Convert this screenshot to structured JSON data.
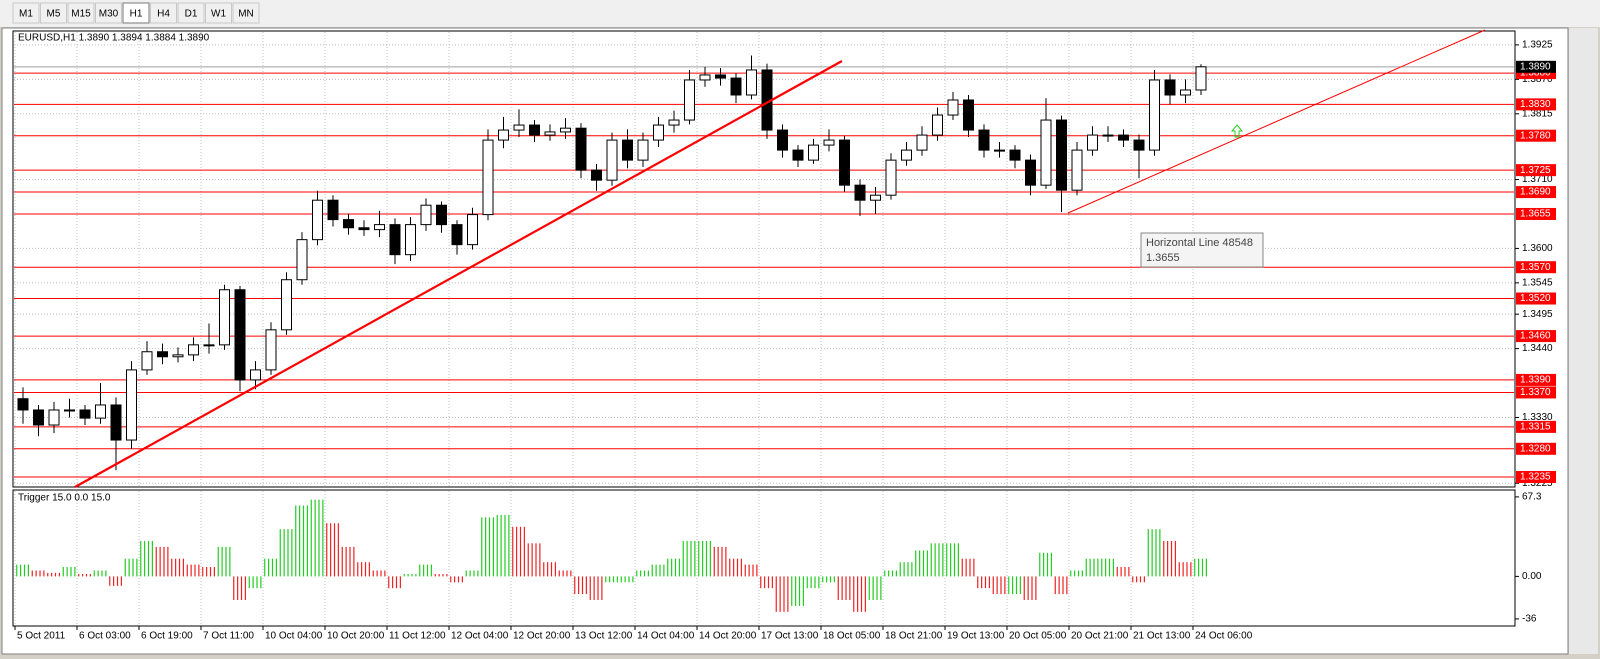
{
  "toolbar": {
    "timeframes": [
      "M1",
      "M5",
      "M15",
      "M30",
      "H1",
      "H4",
      "D1",
      "W1",
      "MN"
    ],
    "active": 4
  },
  "tooltip": {
    "title": "Horizontal Line 48548",
    "value": 1.3655
  },
  "chart_data": [
    {
      "type": "candlestick",
      "title": "EURUSD,H1 1.3890 1.3894 1.3884 1.3890",
      "bull_color": "#ffffff",
      "bear_color": "#000000",
      "wick_color": "#000000",
      "grid": true,
      "ylim": [
        1.3219,
        1.3944
      ],
      "yticks": [
        1.3925,
        {
          "value": 1.387,
          "label": "1.3870"
        },
        1.3815,
        {
          "value": 1.371,
          "label": "1.3710"
        },
        {
          "value": 1.36,
          "label": "1.3600"
        },
        1.3545,
        1.3495,
        {
          "value": 1.344,
          "label": "1.3440"
        },
        {
          "value": 1.333,
          "label": "1.3330"
        },
        1.3225
      ],
      "hline_color": "#ff0000",
      "hlines": [
        {
          "value": 1.388,
          "label": "1.3880"
        },
        {
          "value": 1.383,
          "label": "1.3830"
        },
        {
          "value": 1.378,
          "label": "1.3780"
        },
        1.3725,
        {
          "value": 1.369,
          "label": "1.3690"
        },
        1.3655,
        {
          "value": 1.357,
          "label": "1.3570"
        },
        {
          "value": 1.352,
          "label": "1.3520"
        },
        {
          "value": 1.346,
          "label": "1.3460"
        },
        {
          "value": 1.339,
          "label": "1.3390"
        },
        {
          "value": 1.337,
          "label": "1.3370"
        },
        1.3315,
        {
          "value": 1.328,
          "label": "1.3280"
        },
        1.3235
      ],
      "current_price": {
        "value": 1.389,
        "label": "1.3890"
      },
      "open": [
        1.336,
        1.3342,
        1.3318,
        1.3342,
        1.3342,
        1.3329,
        1.335,
        1.3294,
        1.3406,
        1.3435,
        1.3427,
        1.343,
        1.3446,
        1.3446,
        1.3534,
        1.339,
        1.3406,
        1.347,
        1.355,
        1.3614,
        1.3677,
        1.3646,
        1.3633,
        1.363,
        1.3638,
        1.359,
        1.3638,
        1.3669,
        1.3638,
        1.3606,
        1.3654,
        1.3773,
        1.3789,
        1.3797,
        1.3781,
        1.3786,
        1.3792,
        1.3725,
        1.3709,
        1.3773,
        1.3741,
        1.3773,
        1.3797,
        1.3805,
        1.3869,
        1.3877,
        1.3872,
        1.3845,
        1.3885,
        1.3789,
        1.3757,
        1.3741,
        1.3765,
        1.3773,
        1.3701,
        1.3677,
        1.3685,
        1.3741,
        1.3757,
        1.3781,
        1.3813,
        1.3837,
        1.3789,
        1.3757,
        1.3757,
        1.3741,
        1.3701,
        1.3805,
        1.3693,
        1.3757,
        1.3781,
        1.3781,
        1.3773,
        1.3757,
        1.3869,
        1.3845,
        1.3853
      ],
      "high": [
        1.3378,
        1.335,
        1.3355,
        1.336,
        1.335,
        1.3385,
        1.3362,
        1.342,
        1.3452,
        1.3448,
        1.3442,
        1.3458,
        1.348,
        1.3542,
        1.354,
        1.342,
        1.3482,
        1.3562,
        1.3626,
        1.3692,
        1.3685,
        1.3655,
        1.3645,
        1.366,
        1.3648,
        1.365,
        1.368,
        1.3675,
        1.3645,
        1.3665,
        1.379,
        1.381,
        1.3822,
        1.3805,
        1.3798,
        1.3808,
        1.38,
        1.3735,
        1.3785,
        1.379,
        1.3785,
        1.381,
        1.382,
        1.3885,
        1.389,
        1.3888,
        1.388,
        1.3908,
        1.3895,
        1.3798,
        1.3765,
        1.3775,
        1.379,
        1.378,
        1.371,
        1.3698,
        1.3752,
        1.377,
        1.3795,
        1.3825,
        1.385,
        1.3845,
        1.3798,
        1.377,
        1.3765,
        1.375,
        1.384,
        1.3812,
        1.377,
        1.3795,
        1.3795,
        1.379,
        1.3782,
        1.3885,
        1.3878,
        1.387,
        1.3894
      ],
      "low": [
        1.332,
        1.33,
        1.3305,
        1.333,
        1.3318,
        1.332,
        1.3246,
        1.328,
        1.3398,
        1.3415,
        1.3418,
        1.342,
        1.3432,
        1.3438,
        1.3372,
        1.3375,
        1.3398,
        1.3462,
        1.3542,
        1.3605,
        1.3635,
        1.3622,
        1.362,
        1.3618,
        1.3575,
        1.358,
        1.3628,
        1.3625,
        1.359,
        1.3598,
        1.3645,
        1.376,
        1.3778,
        1.377,
        1.3772,
        1.3775,
        1.3712,
        1.3692,
        1.37,
        1.3728,
        1.373,
        1.3762,
        1.3785,
        1.3798,
        1.3858,
        1.386,
        1.3832,
        1.3838,
        1.3775,
        1.3745,
        1.373,
        1.3735,
        1.3755,
        1.369,
        1.3652,
        1.3655,
        1.3678,
        1.3732,
        1.3748,
        1.3772,
        1.3805,
        1.3778,
        1.3745,
        1.3745,
        1.3728,
        1.3685,
        1.3695,
        1.3658,
        1.3685,
        1.3748,
        1.377,
        1.3762,
        1.3712,
        1.3748,
        1.383,
        1.3832,
        1.3845
      ],
      "close": [
        1.3342,
        1.3318,
        1.3342,
        1.3342,
        1.3329,
        1.335,
        1.3294,
        1.3406,
        1.3435,
        1.3427,
        1.343,
        1.3446,
        1.3446,
        1.3534,
        1.339,
        1.3406,
        1.347,
        1.355,
        1.3614,
        1.3677,
        1.3646,
        1.3633,
        1.363,
        1.3638,
        1.359,
        1.3638,
        1.3669,
        1.3638,
        1.3606,
        1.3654,
        1.3773,
        1.3789,
        1.3797,
        1.3781,
        1.3786,
        1.3792,
        1.3725,
        1.3709,
        1.3773,
        1.3741,
        1.3773,
        1.3797,
        1.3805,
        1.3869,
        1.3877,
        1.3872,
        1.3845,
        1.3885,
        1.3789,
        1.3757,
        1.3741,
        1.3765,
        1.3773,
        1.3701,
        1.3677,
        1.3685,
        1.3741,
        1.3757,
        1.3781,
        1.3813,
        1.3837,
        1.3789,
        1.3757,
        1.3757,
        1.3741,
        1.3701,
        1.3805,
        1.3693,
        1.3757,
        1.3781,
        1.3781,
        1.3773,
        1.3757,
        1.3869,
        1.3845,
        1.3853,
        1.389
      ]
    },
    {
      "type": "bar",
      "title": "Trigger 15.0 0.0 15.0",
      "rising_color": "#22cc22",
      "falling_color": "#ee2222",
      "ylim": [
        -42,
        72.3
      ],
      "yticks": [
        67.3,
        {
          "value": 0,
          "label": "0.00"
        },
        -36
      ],
      "categories": [
        "5 Oct 2011",
        null,
        null,
        null,
        "6 Oct 03:00",
        null,
        null,
        null,
        "6 Oct 19:00",
        null,
        null,
        null,
        "7 Oct 11:00",
        null,
        null,
        null,
        "10 Oct 04:00",
        null,
        null,
        null,
        "10 Oct 20:00",
        null,
        null,
        null,
        "11 Oct 12:00",
        null,
        null,
        null,
        "12 Oct 04:00",
        null,
        null,
        null,
        "12 Oct 20:00",
        null,
        null,
        null,
        "13 Oct 12:00",
        null,
        null,
        null,
        "14 Oct 04:00",
        null,
        null,
        null,
        "14 Oct 20:00",
        null,
        null,
        null,
        "17 Oct 13:00",
        null,
        null,
        null,
        "18 Oct 05:00",
        null,
        null,
        null,
        "18 Oct 21:00",
        null,
        null,
        null,
        "19 Oct 13:00",
        null,
        null,
        null,
        "20 Oct 05:00",
        null,
        null,
        null,
        "20 Oct 21:00",
        null,
        null,
        null,
        "21 Oct 13:00",
        null,
        null,
        null,
        "24 Oct 06:00"
      ],
      "values": [
        10,
        5,
        3,
        8,
        2,
        5,
        -8,
        15,
        30,
        25,
        15,
        10,
        8,
        25,
        -20,
        -10,
        15,
        40,
        60,
        65,
        45,
        25,
        12,
        5,
        -10,
        2,
        10,
        2,
        -5,
        5,
        50,
        52,
        42,
        28,
        12,
        5,
        -15,
        -20,
        -5,
        -5,
        5,
        10,
        15,
        30,
        30,
        25,
        15,
        10,
        -10,
        -30,
        -25,
        -10,
        -5,
        -20,
        -30,
        -20,
        5,
        12,
        22,
        28,
        28,
        15,
        -10,
        -15,
        -15,
        -20,
        20,
        -15,
        5,
        15,
        15,
        8,
        -5,
        40,
        30,
        12,
        15
      ]
    }
  ]
}
